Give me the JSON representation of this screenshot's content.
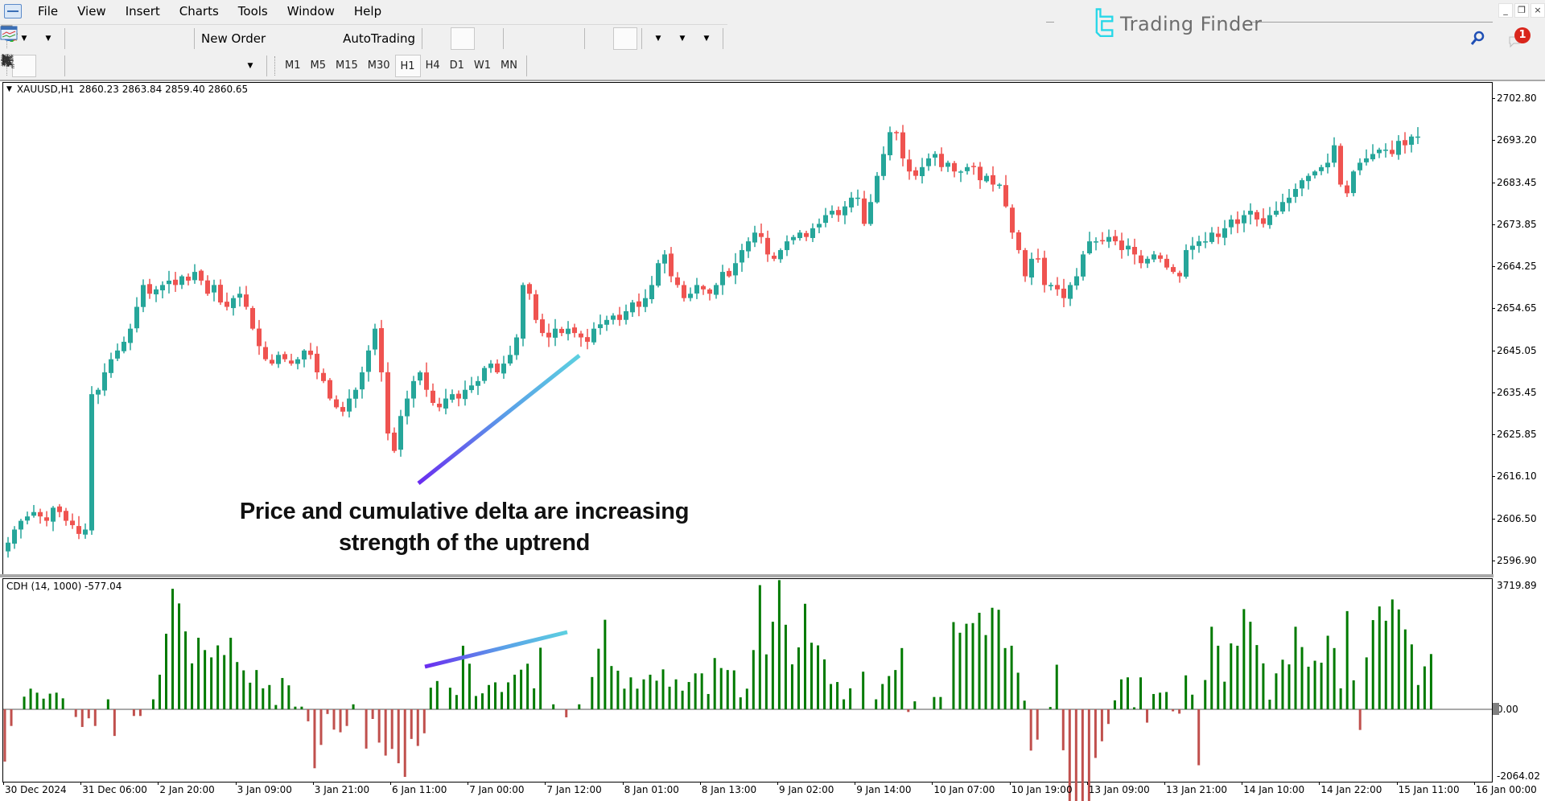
{
  "menu": [
    "File",
    "View",
    "Insert",
    "Charts",
    "Tools",
    "Window",
    "Help"
  ],
  "window_controls": {
    "minimize": "_",
    "restore": "❐",
    "close": "×"
  },
  "brand": {
    "text": "Trading Finder",
    "color": "#27d7e8"
  },
  "toolbar": {
    "new_order_label": "New Order",
    "autotrading_label": "AutoTrading",
    "notifications_count": "1"
  },
  "timeframes": [
    "M1",
    "M5",
    "M15",
    "M30",
    "H1",
    "H4",
    "D1",
    "W1",
    "MN"
  ],
  "active_timeframe": "H1",
  "chart": {
    "symbol": "XAUUSD,H1",
    "ohlc": "2860.23 2863.84 2859.40 2860.65",
    "price_axis": [
      "2702.80",
      "2693.20",
      "2683.45",
      "2673.85",
      "2664.25",
      "2654.65",
      "2645.05",
      "2635.45",
      "2625.85",
      "2616.10",
      "2606.50",
      "2596.90"
    ],
    "bull_color": "#26a69a",
    "bear_color": "#ef5350"
  },
  "indicator": {
    "label": "CDH (14, 1000) -577.04",
    "axis": [
      "3719.89",
      "0.00",
      "-2064.02"
    ],
    "pos_color": "#007a00",
    "neg_color": "#c0504d"
  },
  "time_axis": [
    "30 Dec 2024",
    "31 Dec 06:00",
    "2 Jan 20:00",
    "3 Jan 09:00",
    "3 Jan 21:00",
    "6 Jan 11:00",
    "7 Jan 00:00",
    "7 Jan 12:00",
    "8 Jan 01:00",
    "8 Jan 13:00",
    "9 Jan 02:00",
    "9 Jan 14:00",
    "10 Jan 07:00",
    "10 Jan 19:00",
    "13 Jan 09:00",
    "13 Jan 21:00",
    "14 Jan 10:00",
    "14 Jan 22:00",
    "15 Jan 11:00",
    "16 Jan 00:00"
  ],
  "annotation": {
    "line1": "Price and cumulative delta are increasing",
    "line2": "strength of the uptrend"
  },
  "chart_data": {
    "type": "candlestick+histogram",
    "title": "XAUUSD,H1 with CDH (14, 1000)",
    "price_ylim": [
      2596.9,
      2702.8
    ],
    "indicator_ylim": [
      -2064.02,
      3719.89
    ],
    "closes": [
      2601,
      2604,
      2606,
      2607,
      2608,
      2607,
      2606,
      2609,
      2608,
      2606,
      2605,
      2603,
      2604,
      2635,
      2636,
      2640,
      2643,
      2645,
      2647,
      2650,
      2655,
      2660,
      2658,
      2659,
      2660,
      2661,
      2660,
      2662,
      2661,
      2663,
      2661,
      2658,
      2660,
      2656,
      2655,
      2657,
      2658,
      2655,
      2650,
      2646,
      2643,
      2642,
      2644,
      2643,
      2642,
      2643,
      2645,
      2644,
      2640,
      2638,
      2634,
      2632,
      2631,
      2634,
      2636,
      2640,
      2645,
      2650,
      2640,
      2626,
      2622,
      2630,
      2634,
      2638,
      2640,
      2636,
      2633,
      2632,
      2634,
      2635,
      2634,
      2636,
      2637,
      2638,
      2641,
      2642,
      2640,
      2642,
      2644,
      2648,
      2660,
      2658,
      2652,
      2649,
      2648,
      2650,
      2649,
      2650,
      2649,
      2648,
      2647,
      2650,
      2651,
      2652,
      2653,
      2652,
      2654,
      2656,
      2655,
      2657,
      2660,
      2665,
      2667,
      2662,
      2660,
      2657,
      2658,
      2660,
      2659,
      2658,
      2660,
      2663,
      2662,
      2665,
      2668,
      2670,
      2672,
      2671,
      2667,
      2666,
      2668,
      2670,
      2671,
      2672,
      2671,
      2673,
      2674,
      2676,
      2677,
      2676,
      2678,
      2680,
      2680,
      2674,
      2679,
      2685,
      2690,
      2695,
      2695,
      2689,
      2686,
      2685,
      2687,
      2689,
      2690,
      2687,
      2688,
      2686,
      2686,
      2687,
      2687,
      2684,
      2685,
      2683,
      2683,
      2678,
      2672,
      2668,
      2662,
      2666,
      2666,
      2660,
      2660,
      2659,
      2657,
      2660,
      2662,
      2667,
      2670,
      2670,
      2670,
      2671,
      2670,
      2668,
      2669,
      2667,
      2665,
      2666,
      2667,
      2666,
      2664,
      2663,
      2662,
      2668,
      2669,
      2670,
      2670,
      2672,
      2671,
      2673,
      2675,
      2674,
      2676,
      2677,
      2675,
      2674,
      2676,
      2677,
      2679,
      2680,
      2682,
      2684,
      2685,
      2686,
      2687,
      2688,
      2692,
      2683,
      2681,
      2686,
      2688,
      2689,
      2690,
      2691,
      2691,
      2690,
      2693,
      2692,
      2694,
      2694
    ],
    "cdh_values": [
      -1570,
      -500,
      0,
      380,
      620,
      500,
      320,
      470,
      500,
      330,
      0,
      -230,
      -530,
      -270,
      -500,
      0,
      300,
      -800,
      0,
      0,
      -200,
      -200,
      0,
      300,
      1040,
      2270,
      3620,
      3180,
      2340,
      1380,
      2150,
      1780,
      1560,
      1920,
      1630,
      2150,
      1420,
      1170,
      800,
      1180,
      630,
      730,
      130,
      940,
      720,
      80,
      80,
      -360,
      -1770,
      -1070,
      -140,
      -610,
      -690,
      -500,
      150,
      0,
      -1180,
      -290,
      -1000,
      -1390,
      -1190,
      -1620,
      -2030,
      -890,
      -1100,
      -720,
      650,
      850,
      0,
      650,
      430,
      1910,
      1370,
      400,
      480,
      730,
      810,
      520,
      810,
      1040,
      1190,
      1370,
      630,
      1850,
      0,
      150,
      0,
      -240,
      0,
      150,
      0,
      970,
      1820,
      2690,
      1300,
      1160,
      620,
      960,
      620,
      900,
      1040,
      860,
      1200,
      680,
      900,
      560,
      820,
      1080,
      1080,
      460,
      1540,
      1240,
      1180,
      1170,
      360,
      620,
      1780,
      3730,
      1650,
      2630,
      3880,
      2540,
      1350,
      1860,
      3170,
      2000,
      1920,
      1500,
      760,
      820,
      300,
      630,
      0,
      1130,
      0,
      300,
      760,
      1000,
      1180,
      1840,
      -80,
      240,
      0,
      0,
      370,
      370,
      0,
      2620,
      2300,
      2570,
      2590,
      2900,
      2230,
      3050,
      2990,
      1840,
      1910,
      1100,
      260,
      -1240,
      -910,
      0,
      70,
      1340,
      -1230,
      -3100,
      -3350,
      -3400,
      -2890,
      -1460,
      -960,
      -440,
      270,
      900,
      960,
      60,
      960,
      -400,
      460,
      500,
      520,
      -60,
      -130,
      1020,
      440,
      -1680,
      880,
      2480,
      1910,
      830,
      1980,
      1910,
      3010,
      2630,
      1930,
      1380,
      290,
      1080,
      1490,
      1350,
      2480,
      1870,
      1280,
      1460,
      1400,
      2210,
      1840,
      630,
      2950,
      870,
      -620,
      1560,
      2680,
      3090,
      2660,
      3300,
      3000,
      2400,
      1950,
      730,
      1290,
      1660
    ],
    "trendlines": [
      {
        "pane": "price",
        "from": [
          520,
          601
        ],
        "to": [
          720,
          442
        ],
        "gradient": [
          "#6a2cf0",
          "#5cd0e0"
        ]
      },
      {
        "pane": "indicator",
        "from": [
          528,
          829
        ],
        "to": [
          705,
          786
        ],
        "gradient": [
          "#6a2cf0",
          "#5cd0e0"
        ]
      }
    ]
  }
}
